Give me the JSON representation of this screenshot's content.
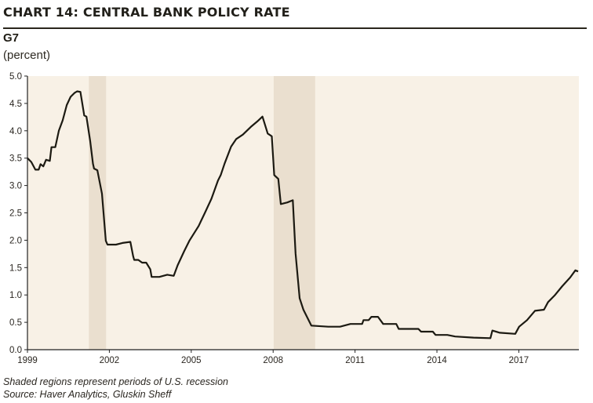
{
  "chart_data": {
    "type": "line",
    "title": "CHART 14: CENTRAL BANK POLICY RATE",
    "subtitle": "G7",
    "ylabel": "(percent)",
    "xlabel": "",
    "xlim": [
      1999,
      2019.2
    ],
    "ylim": [
      0,
      5
    ],
    "x_ticks": [
      1999,
      2002,
      2005,
      2008,
      2011,
      2014,
      2017
    ],
    "y_ticks": [
      "0.0",
      "0.5",
      "1.0",
      "1.5",
      "2.0",
      "2.5",
      "3.0",
      "3.5",
      "4.0",
      "4.5",
      "5.0"
    ],
    "grid": false,
    "recessions": [
      [
        2001.25,
        2001.88
      ],
      [
        2008.02,
        2009.54
      ]
    ],
    "series": [
      {
        "name": "G7 policy rate",
        "color": "#1c1a12",
        "points": [
          [
            1999.0,
            3.5
          ],
          [
            1999.14,
            3.43
          ],
          [
            1999.29,
            3.29
          ],
          [
            1999.41,
            3.29
          ],
          [
            1999.48,
            3.39
          ],
          [
            1999.58,
            3.35
          ],
          [
            1999.68,
            3.47
          ],
          [
            1999.82,
            3.45
          ],
          [
            1999.88,
            3.7
          ],
          [
            2000.02,
            3.7
          ],
          [
            2000.15,
            4.0
          ],
          [
            2000.29,
            4.19
          ],
          [
            2000.44,
            4.47
          ],
          [
            2000.58,
            4.62
          ],
          [
            2000.72,
            4.69
          ],
          [
            2000.82,
            4.72
          ],
          [
            2000.94,
            4.71
          ],
          [
            2001.08,
            4.28
          ],
          [
            2001.16,
            4.26
          ],
          [
            2001.3,
            3.81
          ],
          [
            2001.4,
            3.4
          ],
          [
            2001.44,
            3.31
          ],
          [
            2001.56,
            3.28
          ],
          [
            2001.73,
            2.85
          ],
          [
            2001.87,
            1.99
          ],
          [
            2001.93,
            1.92
          ],
          [
            2002.24,
            1.92
          ],
          [
            2002.48,
            1.95
          ],
          [
            2002.77,
            1.97
          ],
          [
            2002.87,
            1.71
          ],
          [
            2002.91,
            1.64
          ],
          [
            2003.06,
            1.64
          ],
          [
            2003.2,
            1.59
          ],
          [
            2003.35,
            1.59
          ],
          [
            2003.5,
            1.47
          ],
          [
            2003.55,
            1.33
          ],
          [
            2003.83,
            1.33
          ],
          [
            2004.12,
            1.37
          ],
          [
            2004.36,
            1.35
          ],
          [
            2004.5,
            1.54
          ],
          [
            2004.74,
            1.8
          ],
          [
            2004.93,
            1.99
          ],
          [
            2005.12,
            2.14
          ],
          [
            2005.27,
            2.26
          ],
          [
            2005.5,
            2.5
          ],
          [
            2005.74,
            2.76
          ],
          [
            2005.98,
            3.09
          ],
          [
            2006.08,
            3.19
          ],
          [
            2006.22,
            3.4
          ],
          [
            2006.46,
            3.71
          ],
          [
            2006.65,
            3.85
          ],
          [
            2006.89,
            3.93
          ],
          [
            2007.18,
            4.07
          ],
          [
            2007.42,
            4.17
          ],
          [
            2007.61,
            4.26
          ],
          [
            2007.8,
            3.95
          ],
          [
            2007.95,
            3.9
          ],
          [
            2008.04,
            3.19
          ],
          [
            2008.19,
            3.12
          ],
          [
            2008.28,
            2.66
          ],
          [
            2008.52,
            2.69
          ],
          [
            2008.72,
            2.73
          ],
          [
            2008.82,
            1.76
          ],
          [
            2008.97,
            0.94
          ],
          [
            2009.11,
            0.73
          ],
          [
            2009.4,
            0.44
          ],
          [
            2010.02,
            0.42
          ],
          [
            2010.45,
            0.42
          ],
          [
            2010.83,
            0.47
          ],
          [
            2011.26,
            0.47
          ],
          [
            2011.31,
            0.54
          ],
          [
            2011.5,
            0.54
          ],
          [
            2011.6,
            0.6
          ],
          [
            2011.84,
            0.6
          ],
          [
            2012.03,
            0.47
          ],
          [
            2012.51,
            0.47
          ],
          [
            2012.6,
            0.38
          ],
          [
            2013.32,
            0.38
          ],
          [
            2013.42,
            0.33
          ],
          [
            2013.85,
            0.33
          ],
          [
            2013.95,
            0.27
          ],
          [
            2014.38,
            0.27
          ],
          [
            2014.67,
            0.24
          ],
          [
            2015.34,
            0.22
          ],
          [
            2015.96,
            0.21
          ],
          [
            2016.03,
            0.35
          ],
          [
            2016.3,
            0.31
          ],
          [
            2016.87,
            0.29
          ],
          [
            2017.01,
            0.42
          ],
          [
            2017.3,
            0.54
          ],
          [
            2017.59,
            0.71
          ],
          [
            2017.92,
            0.73
          ],
          [
            2018.07,
            0.87
          ],
          [
            2018.31,
            0.99
          ],
          [
            2018.59,
            1.16
          ],
          [
            2018.88,
            1.32
          ],
          [
            2019.07,
            1.45
          ],
          [
            2019.17,
            1.43
          ]
        ]
      }
    ],
    "notes": [
      "Shaded regions represent periods of U.S. recession",
      "Source: Haver Analytics, Gluskin Sheff"
    ],
    "colors": {
      "plot_bg": "#f8f1e6",
      "recession": "#eadfcf",
      "line": "#1c1a12"
    }
  }
}
